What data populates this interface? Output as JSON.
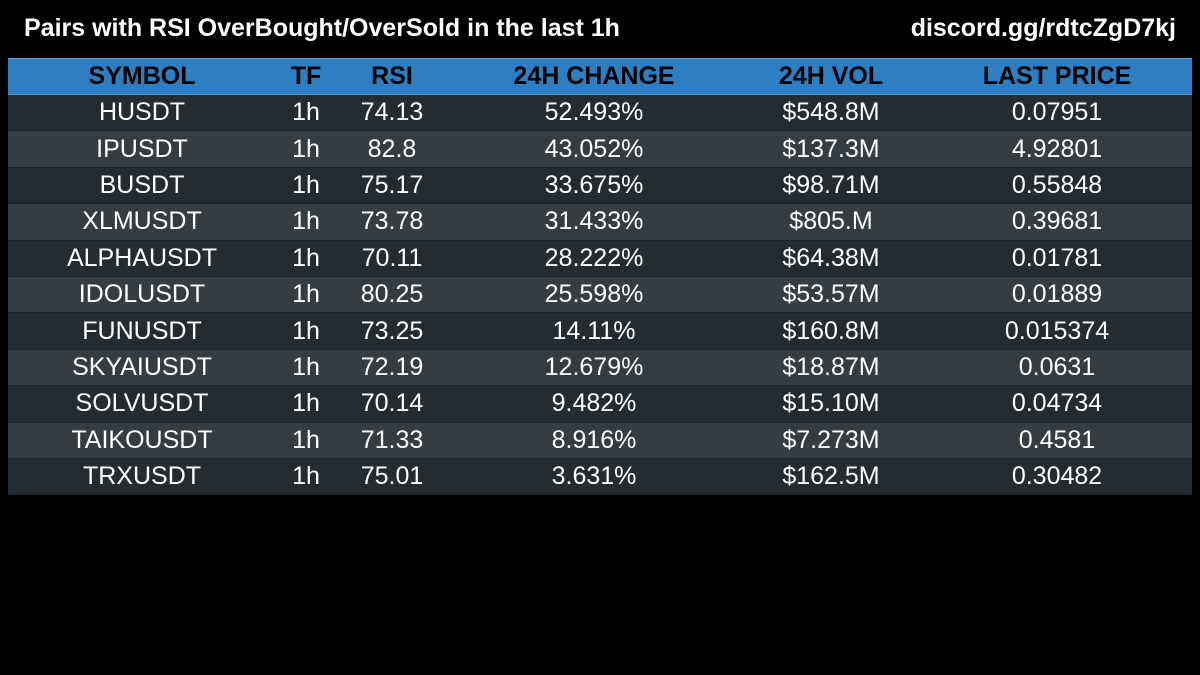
{
  "header": {
    "title": "Pairs with RSI OverBought/OverSold in the last 1h",
    "invite": "discord.gg/rdtcZgD7kj"
  },
  "colors": {
    "header_bg": "#2e7fc1",
    "row_dark": "#252c31",
    "row_light": "#363d42",
    "background": "#000000"
  },
  "table": {
    "columns": [
      "SYMBOL",
      "TF",
      "RSI",
      "24H CHANGE",
      "24H VOL",
      "LAST PRICE"
    ],
    "rows": [
      [
        "HUSDT",
        "1h",
        "74.13",
        "52.493%",
        "$548.8M",
        "0.07951"
      ],
      [
        "IPUSDT",
        "1h",
        "82.8",
        "43.052%",
        "$137.3M",
        "4.92801"
      ],
      [
        "BUSDT",
        "1h",
        "75.17",
        "33.675%",
        "$98.71M",
        "0.55848"
      ],
      [
        "XLMUSDT",
        "1h",
        "73.78",
        "31.433%",
        "$805.M",
        "0.39681"
      ],
      [
        "ALPHAUSDT",
        "1h",
        "70.11",
        "28.222%",
        "$64.38M",
        "0.01781"
      ],
      [
        "IDOLUSDT",
        "1h",
        "80.25",
        "25.598%",
        "$53.57M",
        "0.01889"
      ],
      [
        "FUNUSDT",
        "1h",
        "73.25",
        "14.11%",
        "$160.8M",
        "0.015374"
      ],
      [
        "SKYAIUSDT",
        "1h",
        "72.19",
        "12.679%",
        "$18.87M",
        "0.0631"
      ],
      [
        "SOLVUSDT",
        "1h",
        "70.14",
        "9.482%",
        "$15.10M",
        "0.04734"
      ],
      [
        "TAIKOUSDT",
        "1h",
        "71.33",
        "8.916%",
        "$7.273M",
        "0.4581"
      ],
      [
        "TRXUSDT",
        "1h",
        "75.01",
        "3.631%",
        "$162.5M",
        "0.30482"
      ]
    ]
  }
}
